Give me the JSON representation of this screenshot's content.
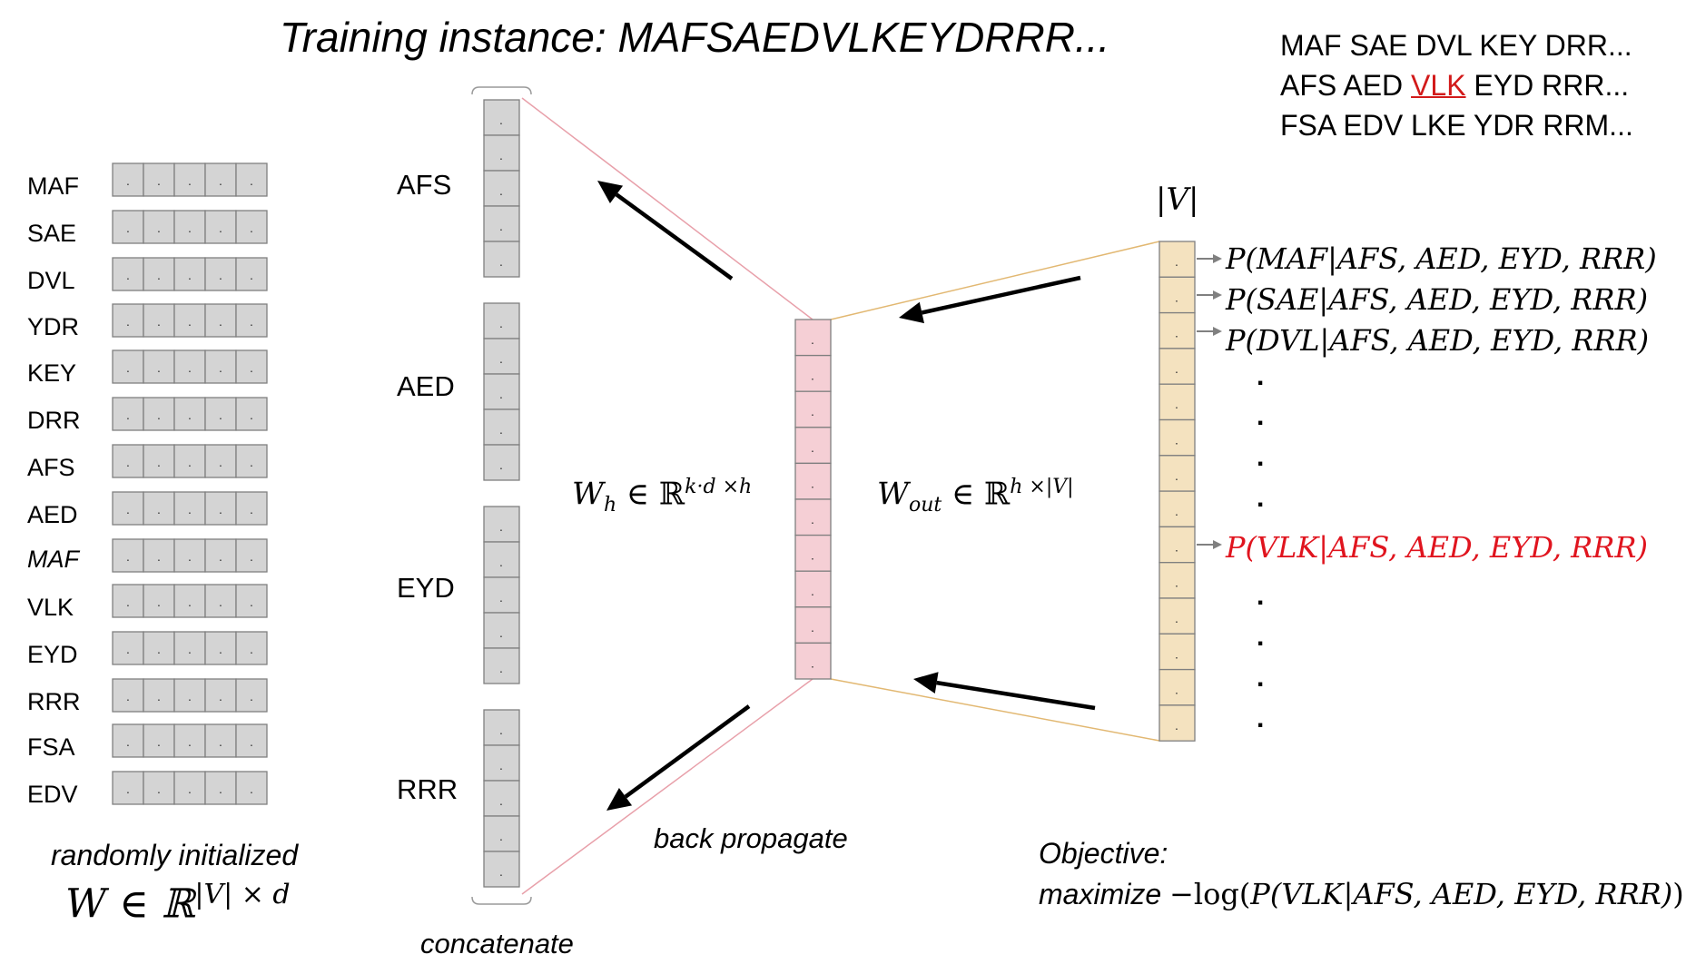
{
  "title": "Training instance: MAFSAEDVLKEYDRRR...",
  "kmer_frames": {
    "line1": "MAF SAE DVL KEY DRR...",
    "line2_before": "AFS AED ",
    "line2_highlight": "VLK",
    "line2_after": " EYD RRR...",
    "line3": "FSA EDV LKE YDR RRM..."
  },
  "embedding_rows": [
    "MAF",
    "SAE",
    "DVL",
    "YDR",
    "KEY",
    "DRR",
    "AFS",
    "AED",
    "MAF",
    "VLK",
    "EYD",
    "RRR",
    "FSA",
    "EDV"
  ],
  "embedding_caption": "randomly initialized",
  "embedding_matrix": {
    "prefix": "W ∈ ℝ",
    "sup": "|V| × d"
  },
  "context_segments": [
    "AFS",
    "AED",
    "EYD",
    "RRR"
  ],
  "concatenate_label": "concatenate",
  "back_propagate_label": "back propagate",
  "hidden_weight": {
    "main": "W",
    "sub": "h",
    "in": " ∈ ℝ",
    "sup": "k·d ×h"
  },
  "output_weight": {
    "main": "W",
    "sub": "out",
    "in": " ∈ ℝ",
    "sup": "h ×|V|"
  },
  "vocab_label": "|V|",
  "probabilities": [
    "P(MAF|AFS, AED, EYD, RRR)",
    "P(SAE|AFS, AED, EYD, RRR)",
    "P(DVL|AFS, AED, EYD, RRR)"
  ],
  "highlight_probability": "P(VLK|AFS, AED, EYD, RRR)",
  "ellipsis_dot": ".",
  "cell_dot": ".",
  "objective_label": "Objective:",
  "objective_expr": {
    "word": "maximize ",
    "fn": "−log(",
    "arg": "P(VLK|AFS, AED, EYD, RRR)",
    "close": ")"
  },
  "colors": {
    "gray_cell": "#d4d4d4",
    "pink_cell": "#f5cfd5",
    "tan_cell": "#f4e2bf",
    "pink_line": "#e8a0aa",
    "tan_line": "#e2b872",
    "highlight_red": "#e0141e"
  }
}
